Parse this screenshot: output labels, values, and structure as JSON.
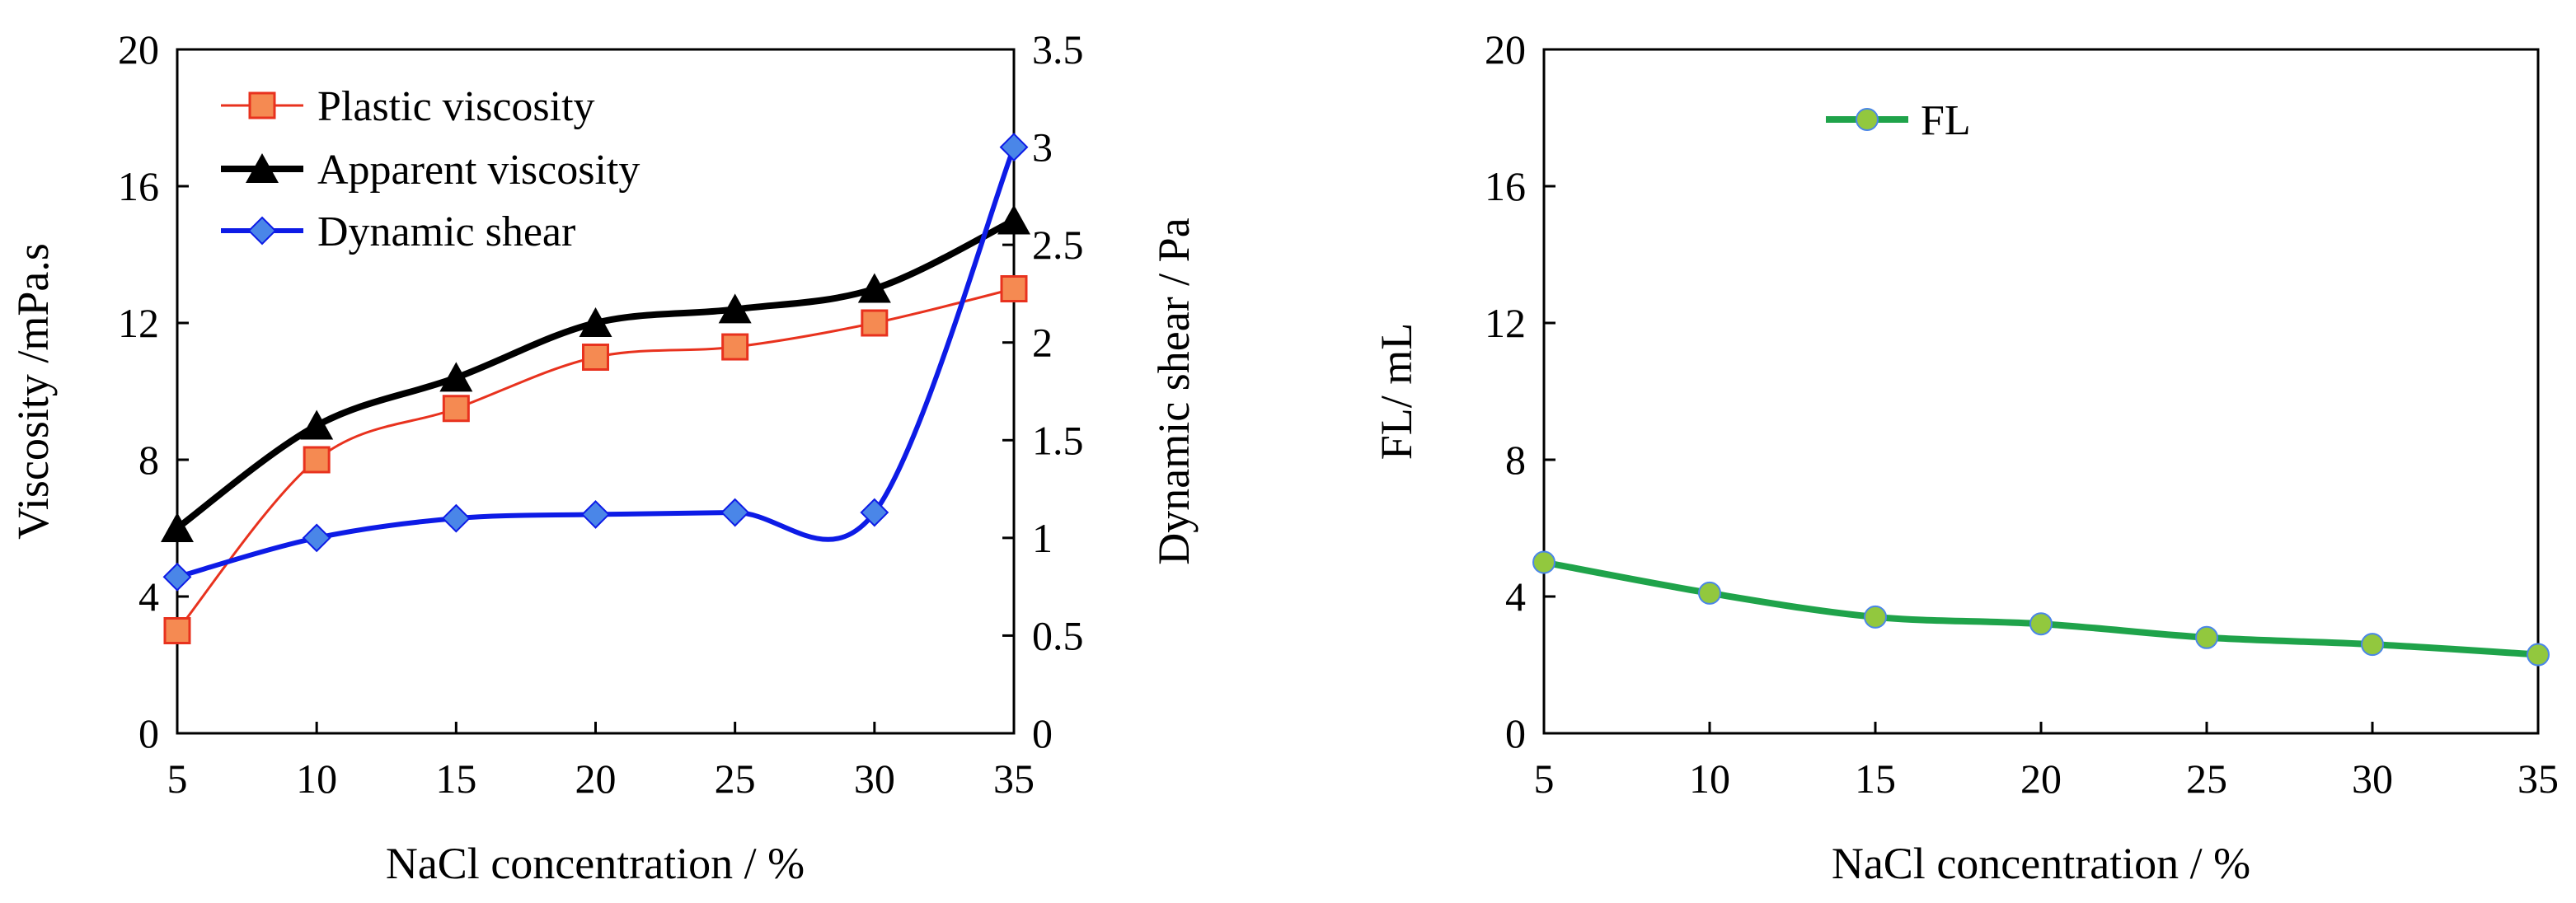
{
  "chart_data": [
    {
      "type": "line",
      "xlabel": "NaCl concentration / %",
      "ylabel": "Viscosity /mPa.s",
      "y2label": "Dynamic shear / Pa",
      "x": [
        5,
        10,
        15,
        20,
        25,
        30,
        35
      ],
      "xlim": [
        5,
        35
      ],
      "ylim": [
        0,
        20
      ],
      "y2lim": [
        0,
        3.5
      ],
      "xticks": [
        "5",
        "10",
        "15",
        "20",
        "25",
        "30",
        "35"
      ],
      "yticks": [
        "0",
        "4",
        "8",
        "12",
        "16",
        "20"
      ],
      "y2ticks": [
        "0",
        "0.5",
        "1",
        "1.5",
        "2",
        "2.5",
        "3",
        "3.5"
      ],
      "grid": false,
      "legend_position": "top-left",
      "series": [
        {
          "name": "Plastic viscosity",
          "axis": "left",
          "marker": "square",
          "color": "#e8321e",
          "fill": "#f58a52",
          "values": [
            3,
            8,
            9.5,
            11,
            11.3,
            12,
            13
          ]
        },
        {
          "name": "Apparent viscosity",
          "axis": "left",
          "marker": "triangle",
          "color": "#000000",
          "fill": "#000000",
          "values": [
            6,
            9,
            10.4,
            12,
            12.4,
            13,
            15
          ]
        },
        {
          "name": "Dynamic shear",
          "axis": "right",
          "marker": "diamond",
          "color": "#0d1be6",
          "fill": "#4a86e8",
          "values": [
            0.8,
            1.0,
            1.1,
            1.12,
            1.13,
            1.13,
            3.0
          ]
        }
      ]
    },
    {
      "type": "line",
      "xlabel": "NaCl concentration / %",
      "ylabel": "FL/ mL",
      "x": [
        5,
        10,
        15,
        20,
        25,
        30,
        35
      ],
      "xlim": [
        5,
        35
      ],
      "ylim": [
        0,
        20
      ],
      "xticks": [
        "5",
        "10",
        "15",
        "20",
        "25",
        "30",
        "35"
      ],
      "yticks": [
        "0",
        "4",
        "8",
        "12",
        "16",
        "20"
      ],
      "grid": false,
      "legend_position": "top-center",
      "series": [
        {
          "name": "FL",
          "axis": "left",
          "marker": "circle",
          "color": "#1fa34a",
          "fill": "#92c83e",
          "values": [
            5,
            4.1,
            3.4,
            3.2,
            2.8,
            2.6,
            2.3
          ]
        }
      ]
    }
  ]
}
